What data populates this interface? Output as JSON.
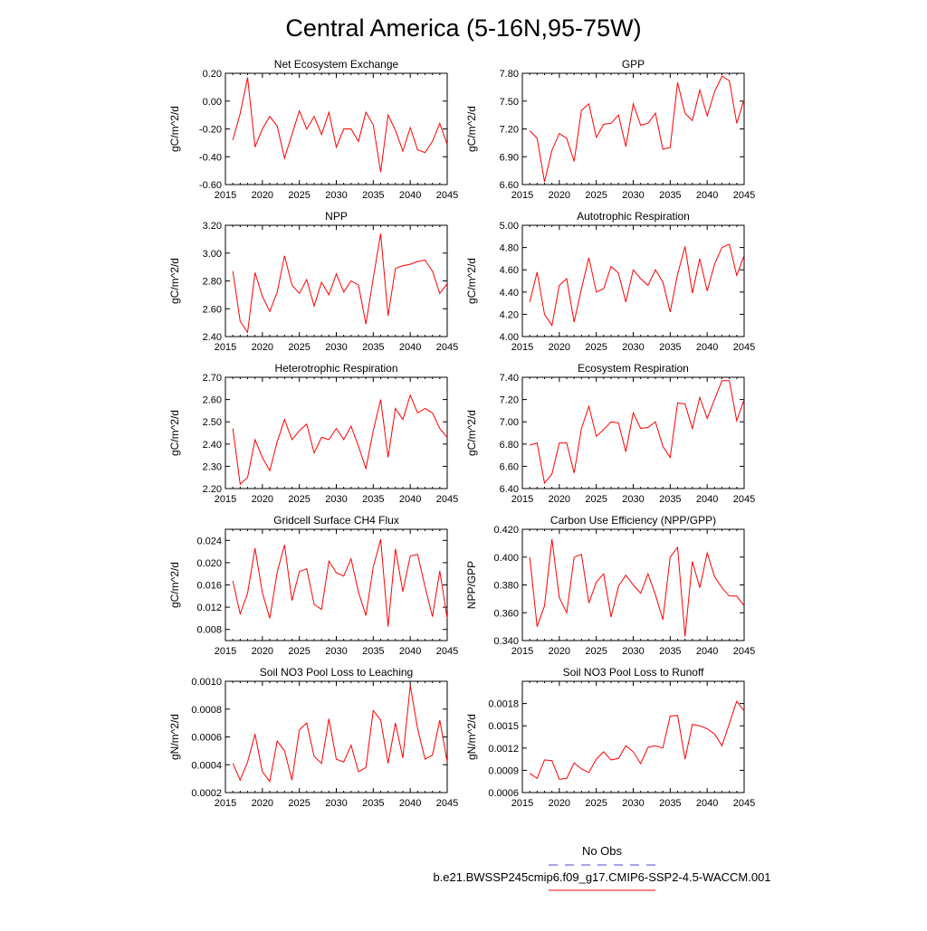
{
  "title": "Central America (5-16N,95-75W)",
  "colors": {
    "series": "#ff0000",
    "obs": "#4a4ad8"
  },
  "legend": {
    "obs_label": "No Obs",
    "model_label": "b.e21.BWSSP245cmip6.f09_g17.CMIP6-SSP2-4.5-WACCM.001"
  },
  "chart_data": [
    {
      "type": "line",
      "title": "Net Ecosystem Exchange",
      "ylabel": "gC/m^2/d",
      "xlim": [
        2015,
        2045
      ],
      "ylim": [
        -0.6,
        0.2
      ],
      "xticks": [
        2015,
        2020,
        2025,
        2030,
        2035,
        2040,
        2045
      ],
      "yticks": [
        -0.6,
        -0.4,
        -0.2,
        0.0,
        0.2
      ],
      "ytick_labels": [
        "-0.60",
        "-0.40",
        "-0.20",
        "0.00",
        "0.20"
      ],
      "x": [
        2016,
        2017,
        2018,
        2019,
        2020,
        2021,
        2022,
        2023,
        2024,
        2025,
        2026,
        2027,
        2028,
        2029,
        2030,
        2031,
        2032,
        2033,
        2034,
        2035,
        2036,
        2037,
        2038,
        2039,
        2040,
        2041,
        2042,
        2043,
        2044,
        2045
      ],
      "values": [
        -0.28,
        -0.09,
        0.17,
        -0.33,
        -0.2,
        -0.11,
        -0.18,
        -0.41,
        -0.24,
        -0.07,
        -0.2,
        -0.11,
        -0.24,
        -0.08,
        -0.33,
        -0.2,
        -0.2,
        -0.29,
        -0.08,
        -0.17,
        -0.51,
        -0.1,
        -0.21,
        -0.36,
        -0.19,
        -0.35,
        -0.37,
        -0.29,
        -0.16,
        -0.31
      ]
    },
    {
      "type": "line",
      "title": "GPP",
      "ylabel": "gC/m^2/d",
      "xlim": [
        2015,
        2045
      ],
      "ylim": [
        6.6,
        7.8
      ],
      "xticks": [
        2015,
        2020,
        2025,
        2030,
        2035,
        2040,
        2045
      ],
      "yticks": [
        6.6,
        6.9,
        7.2,
        7.5,
        7.8
      ],
      "ytick_labels": [
        "6.60",
        "6.90",
        "7.20",
        "7.50",
        "7.80"
      ],
      "x": [
        2016,
        2017,
        2018,
        2019,
        2020,
        2021,
        2022,
        2023,
        2024,
        2025,
        2026,
        2027,
        2028,
        2029,
        2030,
        2031,
        2032,
        2033,
        2034,
        2035,
        2036,
        2037,
        2038,
        2039,
        2040,
        2041,
        2042,
        2043,
        2044,
        2045
      ],
      "values": [
        7.18,
        7.1,
        6.63,
        6.97,
        7.15,
        7.1,
        6.85,
        7.4,
        7.47,
        7.11,
        7.25,
        7.26,
        7.35,
        7.01,
        7.47,
        7.24,
        7.26,
        7.37,
        6.98,
        7.0,
        7.7,
        7.37,
        7.29,
        7.62,
        7.34,
        7.6,
        7.77,
        7.72,
        7.26,
        7.52
      ]
    },
    {
      "type": "line",
      "title": "NPP",
      "ylabel": "gC/m^2/d",
      "xlim": [
        2015,
        2045
      ],
      "ylim": [
        2.4,
        3.2
      ],
      "xticks": [
        2015,
        2020,
        2025,
        2030,
        2035,
        2040,
        2045
      ],
      "yticks": [
        2.4,
        2.6,
        2.8,
        3.0,
        3.2
      ],
      "ytick_labels": [
        "2.40",
        "2.60",
        "2.80",
        "3.00",
        "3.20"
      ],
      "x": [
        2016,
        2017,
        2018,
        2019,
        2020,
        2021,
        2022,
        2023,
        2024,
        2025,
        2026,
        2027,
        2028,
        2029,
        2030,
        2031,
        2032,
        2033,
        2034,
        2035,
        2036,
        2037,
        2038,
        2039,
        2040,
        2041,
        2042,
        2043,
        2044,
        2045
      ],
      "values": [
        2.87,
        2.51,
        2.43,
        2.86,
        2.69,
        2.58,
        2.72,
        2.98,
        2.77,
        2.71,
        2.81,
        2.62,
        2.79,
        2.7,
        2.85,
        2.72,
        2.8,
        2.77,
        2.49,
        2.82,
        3.14,
        2.55,
        2.89,
        2.91,
        2.92,
        2.94,
        2.95,
        2.87,
        2.71,
        2.78
      ]
    },
    {
      "type": "line",
      "title": "Autotrophic Respiration",
      "ylabel": "gC/m^2/d",
      "xlim": [
        2015,
        2045
      ],
      "ylim": [
        4.0,
        5.0
      ],
      "xticks": [
        2015,
        2020,
        2025,
        2030,
        2035,
        2040,
        2045
      ],
      "yticks": [
        4.0,
        4.2,
        4.4,
        4.6,
        4.8,
        5.0
      ],
      "ytick_labels": [
        "4.00",
        "4.20",
        "4.40",
        "4.60",
        "4.80",
        "5.00"
      ],
      "x": [
        2016,
        2017,
        2018,
        2019,
        2020,
        2021,
        2022,
        2023,
        2024,
        2025,
        2026,
        2027,
        2028,
        2029,
        2030,
        2031,
        2032,
        2033,
        2034,
        2035,
        2036,
        2037,
        2038,
        2039,
        2040,
        2041,
        2042,
        2043,
        2044,
        2045
      ],
      "values": [
        4.31,
        4.58,
        4.2,
        4.1,
        4.46,
        4.52,
        4.13,
        4.43,
        4.71,
        4.4,
        4.43,
        4.63,
        4.57,
        4.31,
        4.6,
        4.52,
        4.46,
        4.6,
        4.49,
        4.22,
        4.56,
        4.81,
        4.39,
        4.7,
        4.41,
        4.65,
        4.8,
        4.83,
        4.55,
        4.73
      ]
    },
    {
      "type": "line",
      "title": "Heterotrophic Respiration",
      "ylabel": "gC/m^2/d",
      "xlim": [
        2015,
        2045
      ],
      "ylim": [
        2.2,
        2.7
      ],
      "xticks": [
        2015,
        2020,
        2025,
        2030,
        2035,
        2040,
        2045
      ],
      "yticks": [
        2.2,
        2.3,
        2.4,
        2.5,
        2.6,
        2.7
      ],
      "ytick_labels": [
        "2.20",
        "2.30",
        "2.40",
        "2.50",
        "2.60",
        "2.70"
      ],
      "x": [
        2016,
        2017,
        2018,
        2019,
        2020,
        2021,
        2022,
        2023,
        2024,
        2025,
        2026,
        2027,
        2028,
        2029,
        2030,
        2031,
        2032,
        2033,
        2034,
        2035,
        2036,
        2037,
        2038,
        2039,
        2040,
        2041,
        2042,
        2043,
        2044,
        2045
      ],
      "values": [
        2.47,
        2.22,
        2.25,
        2.42,
        2.34,
        2.28,
        2.41,
        2.51,
        2.42,
        2.46,
        2.49,
        2.36,
        2.43,
        2.42,
        2.47,
        2.42,
        2.48,
        2.39,
        2.29,
        2.46,
        2.6,
        2.34,
        2.56,
        2.51,
        2.62,
        2.54,
        2.56,
        2.54,
        2.47,
        2.43
      ]
    },
    {
      "type": "line",
      "title": "Ecosystem Respiration",
      "ylabel": "gC/m^2/d",
      "xlim": [
        2015,
        2045
      ],
      "ylim": [
        6.4,
        7.4
      ],
      "xticks": [
        2015,
        2020,
        2025,
        2030,
        2035,
        2040,
        2045
      ],
      "yticks": [
        6.4,
        6.6,
        6.8,
        7.0,
        7.2,
        7.4
      ],
      "ytick_labels": [
        "6.40",
        "6.60",
        "6.80",
        "7.00",
        "7.20",
        "7.40"
      ],
      "x": [
        2016,
        2017,
        2018,
        2019,
        2020,
        2021,
        2022,
        2023,
        2024,
        2025,
        2026,
        2027,
        2028,
        2029,
        2030,
        2031,
        2032,
        2033,
        2034,
        2035,
        2036,
        2037,
        2038,
        2039,
        2040,
        2041,
        2042,
        2043,
        2044,
        2045
      ],
      "values": [
        6.79,
        6.81,
        6.45,
        6.53,
        6.81,
        6.81,
        6.54,
        6.94,
        7.14,
        6.87,
        6.93,
        7.0,
        6.99,
        6.73,
        7.08,
        6.94,
        6.95,
        7.0,
        6.78,
        6.68,
        7.17,
        7.16,
        6.94,
        7.22,
        7.03,
        7.2,
        7.37,
        7.37,
        7.01,
        7.2
      ]
    },
    {
      "type": "line",
      "title": "Gridcell Surface CH4 Flux",
      "ylabel": "gC/m^2/d",
      "xlim": [
        2015,
        2045
      ],
      "ylim": [
        0.006,
        0.026
      ],
      "xticks": [
        2015,
        2020,
        2025,
        2030,
        2035,
        2040,
        2045
      ],
      "yticks": [
        0.008,
        0.012,
        0.016,
        0.02,
        0.024
      ],
      "ytick_labels": [
        "0.008",
        "0.012",
        "0.016",
        "0.020",
        "0.024"
      ],
      "x": [
        2016,
        2017,
        2018,
        2019,
        2020,
        2021,
        2022,
        2023,
        2024,
        2025,
        2026,
        2027,
        2028,
        2029,
        2030,
        2031,
        2032,
        2033,
        2034,
        2035,
        2036,
        2037,
        2038,
        2039,
        2040,
        2041,
        2042,
        2043,
        2044,
        2045
      ],
      "values": [
        0.0167,
        0.0108,
        0.0145,
        0.0226,
        0.0146,
        0.01,
        0.0183,
        0.0232,
        0.0132,
        0.0184,
        0.0189,
        0.0125,
        0.0116,
        0.0203,
        0.0182,
        0.0176,
        0.0207,
        0.0147,
        0.0105,
        0.0192,
        0.0242,
        0.0085,
        0.0225,
        0.0148,
        0.0212,
        0.0215,
        0.0157,
        0.0103,
        0.0185,
        0.01
      ]
    },
    {
      "type": "line",
      "title": "Carbon Use Efficiency (NPP/GPP)",
      "ylabel": "NPP/GPP",
      "xlim": [
        2015,
        2045
      ],
      "ylim": [
        0.34,
        0.42
      ],
      "xticks": [
        2015,
        2020,
        2025,
        2030,
        2035,
        2040,
        2045
      ],
      "yticks": [
        0.34,
        0.36,
        0.38,
        0.4,
        0.42
      ],
      "ytick_labels": [
        "0.340",
        "0.360",
        "0.380",
        "0.400",
        "0.420"
      ],
      "x": [
        2016,
        2017,
        2018,
        2019,
        2020,
        2021,
        2022,
        2023,
        2024,
        2025,
        2026,
        2027,
        2028,
        2029,
        2030,
        2031,
        2032,
        2033,
        2034,
        2035,
        2036,
        2037,
        2038,
        2039,
        2040,
        2041,
        2042,
        2043,
        2044,
        2045
      ],
      "values": [
        0.4,
        0.35,
        0.365,
        0.413,
        0.371,
        0.36,
        0.4,
        0.402,
        0.367,
        0.382,
        0.388,
        0.357,
        0.379,
        0.387,
        0.38,
        0.374,
        0.388,
        0.373,
        0.355,
        0.4,
        0.407,
        0.343,
        0.397,
        0.378,
        0.403,
        0.386,
        0.378,
        0.372,
        0.372,
        0.365
      ]
    },
    {
      "type": "line",
      "title": "Soil NO3 Pool Loss to Leaching",
      "ylabel": "gN/m^2/d",
      "xlim": [
        2015,
        2045
      ],
      "ylim": [
        0.0002,
        0.001
      ],
      "xticks": [
        2015,
        2020,
        2025,
        2030,
        2035,
        2040,
        2045
      ],
      "yticks": [
        0.0002,
        0.0004,
        0.0006,
        0.0008,
        0.001
      ],
      "ytick_labels": [
        "0.0002",
        "0.0004",
        "0.0006",
        "0.0008",
        "0.0010"
      ],
      "x": [
        2016,
        2017,
        2018,
        2019,
        2020,
        2021,
        2022,
        2023,
        2024,
        2025,
        2026,
        2027,
        2028,
        2029,
        2030,
        2031,
        2032,
        2033,
        2034,
        2035,
        2036,
        2037,
        2038,
        2039,
        2040,
        2041,
        2042,
        2043,
        2044,
        2045
      ],
      "values": [
        0.00041,
        0.00029,
        0.00042,
        0.00062,
        0.00035,
        0.00028,
        0.00057,
        0.0005,
        0.00029,
        0.00065,
        0.0007,
        0.00046,
        0.00041,
        0.00073,
        0.00044,
        0.00042,
        0.00054,
        0.00035,
        0.00038,
        0.00079,
        0.00072,
        0.00041,
        0.0007,
        0.00045,
        0.00097,
        0.00066,
        0.00044,
        0.00047,
        0.00072,
        0.00042
      ]
    },
    {
      "type": "line",
      "title": "Soil NO3 Pool Loss to Runoff",
      "ylabel": "gN/m^2/d",
      "xlim": [
        2015,
        2045
      ],
      "ylim": [
        0.0006,
        0.0021
      ],
      "xticks": [
        2015,
        2020,
        2025,
        2030,
        2035,
        2040,
        2045
      ],
      "yticks": [
        0.0006,
        0.0009,
        0.0012,
        0.0015,
        0.0018
      ],
      "ytick_labels": [
        "0.0006",
        "0.0009",
        "0.0012",
        "0.0015",
        "0.0018"
      ],
      "x": [
        2016,
        2017,
        2018,
        2019,
        2020,
        2021,
        2022,
        2023,
        2024,
        2025,
        2026,
        2027,
        2028,
        2029,
        2030,
        2031,
        2032,
        2033,
        2034,
        2035,
        2036,
        2037,
        2038,
        2039,
        2040,
        2041,
        2042,
        2043,
        2044,
        2045
      ],
      "values": [
        0.00086,
        0.00079,
        0.00104,
        0.00103,
        0.00078,
        0.00079,
        0.001,
        0.00092,
        0.00087,
        0.00105,
        0.00115,
        0.00104,
        0.00106,
        0.00123,
        0.00115,
        0.00099,
        0.00121,
        0.00123,
        0.0012,
        0.00163,
        0.00164,
        0.00105,
        0.00152,
        0.0015,
        0.00146,
        0.00139,
        0.00123,
        0.00153,
        0.00183,
        0.0017
      ]
    }
  ]
}
